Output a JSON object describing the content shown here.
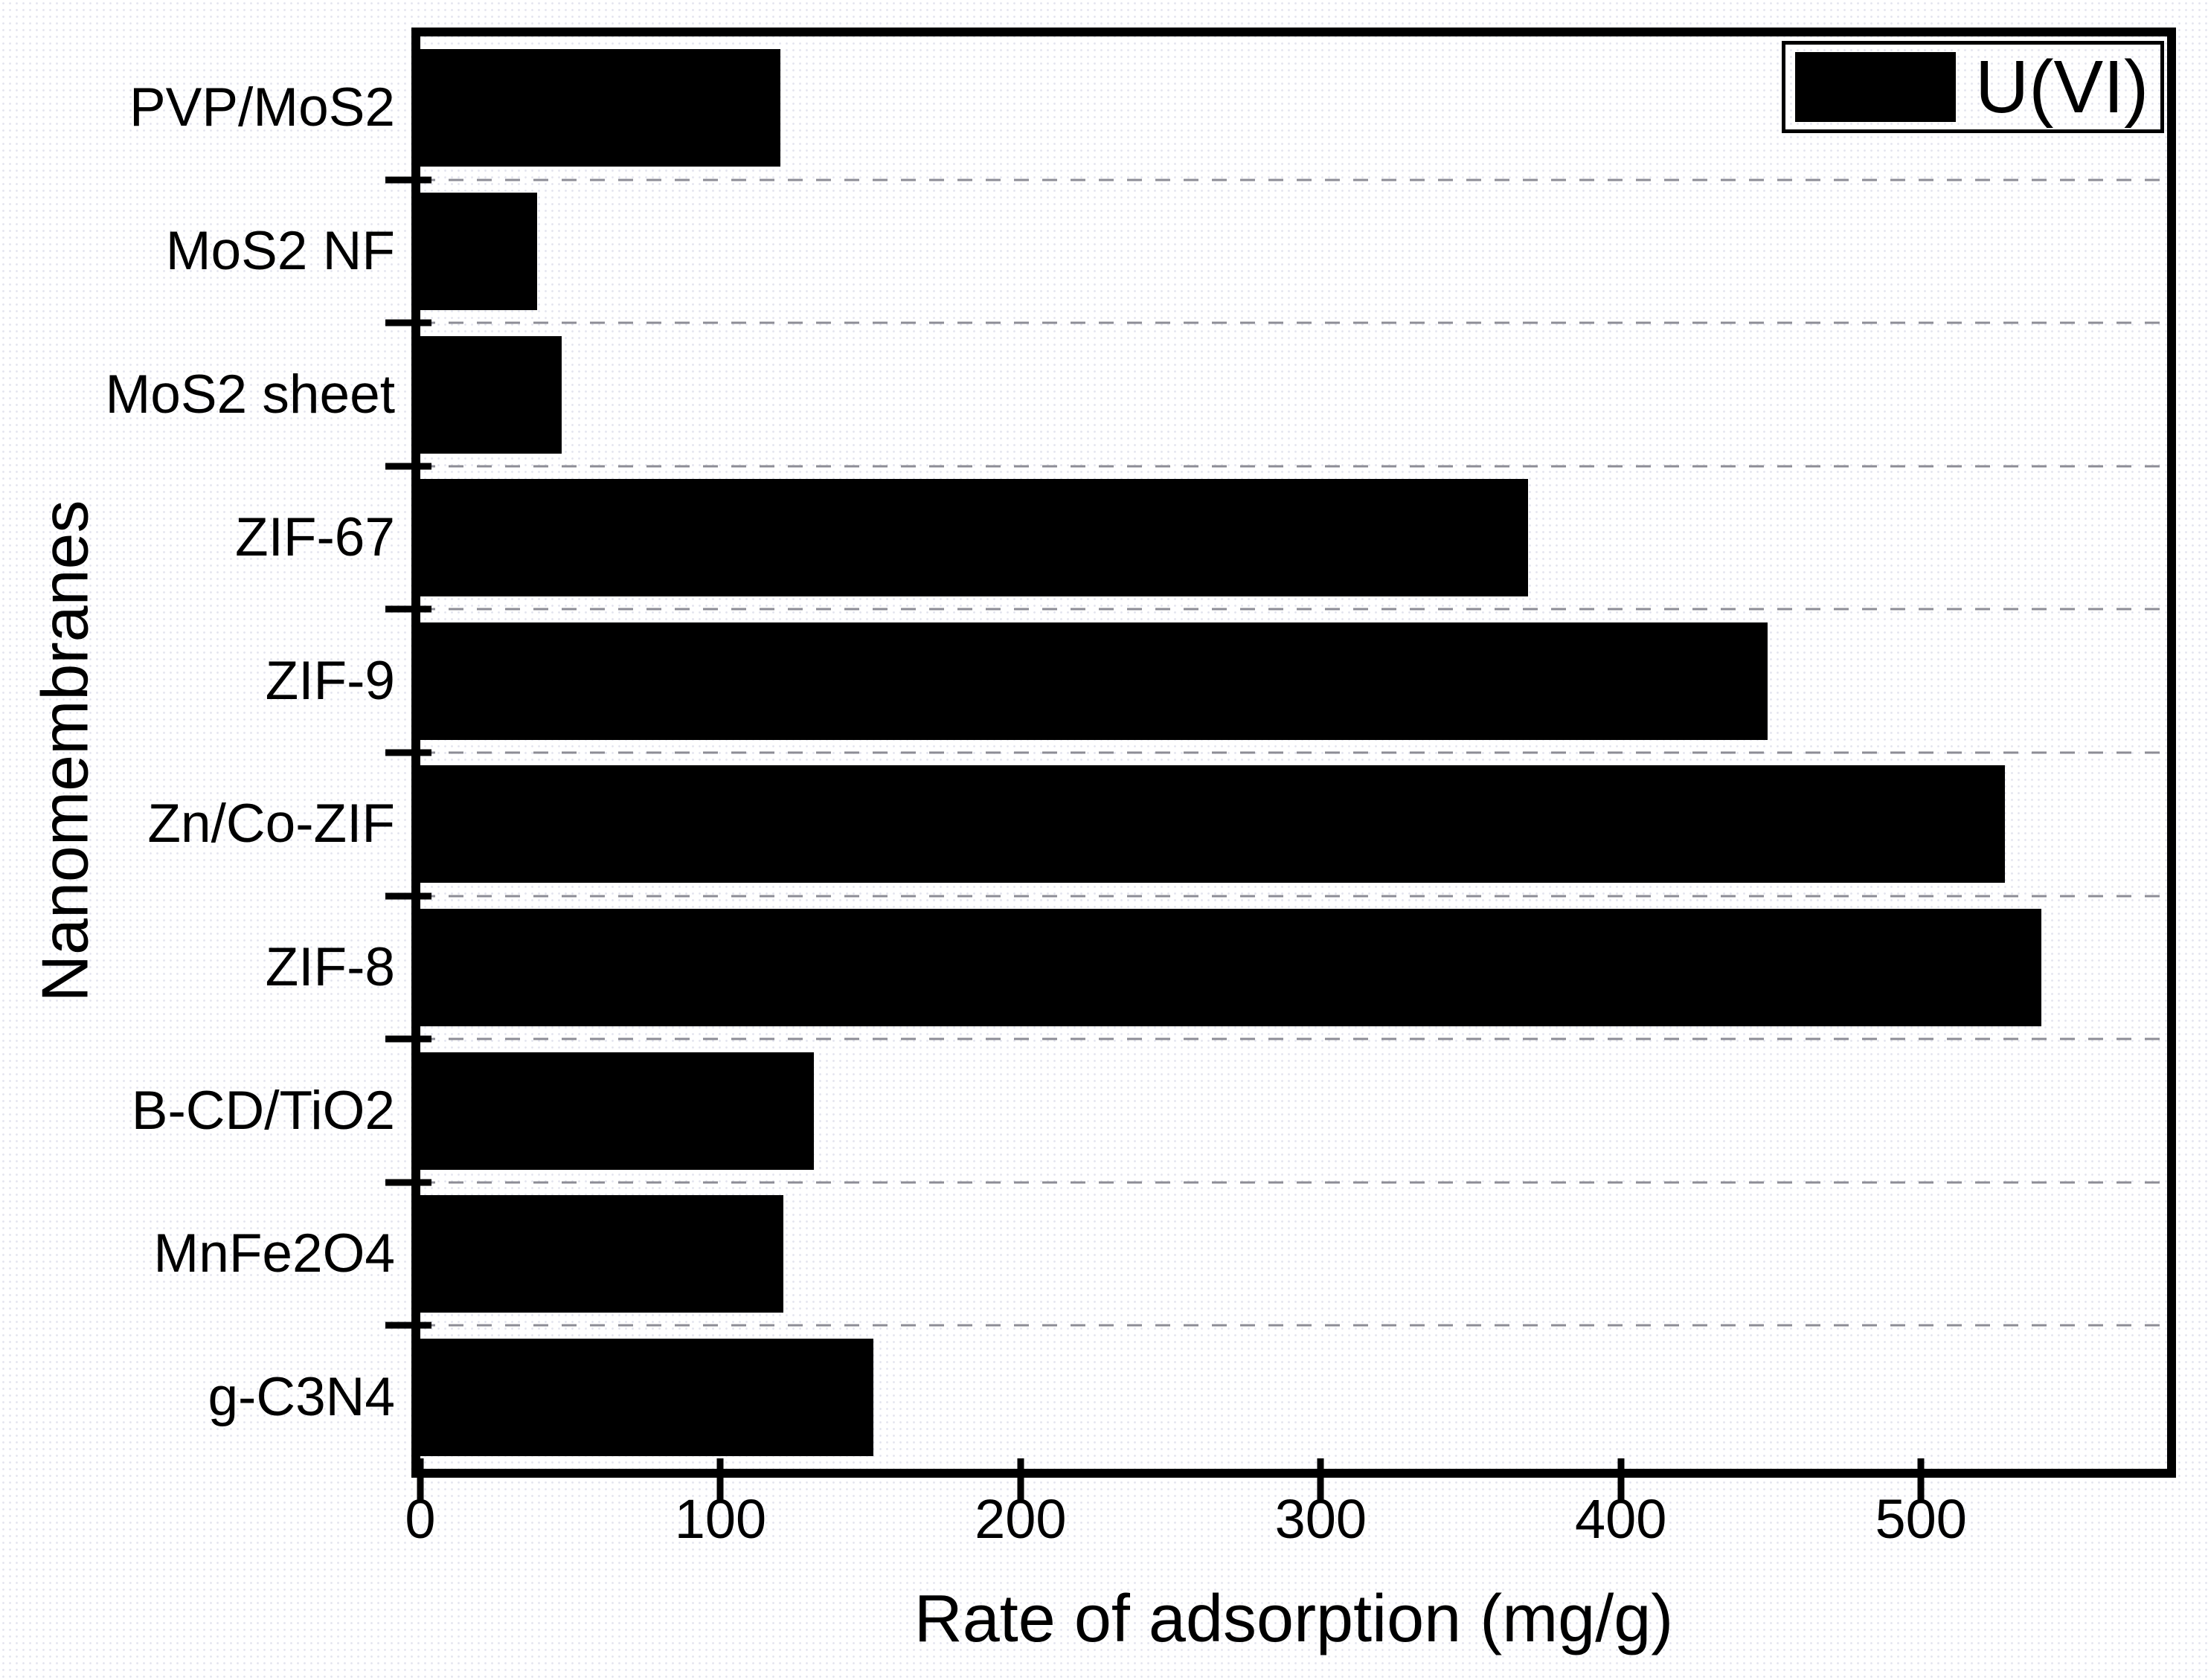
{
  "chart_data": {
    "type": "bar",
    "orientation": "horizontal",
    "title": "",
    "xlabel": "Rate of adsorption (mg/g)",
    "ylabel": "Nanomembranes",
    "categories": [
      "PVP/MoS2",
      "MoS2 NF",
      "MoS2 sheet",
      "ZIF-67",
      "ZIF-9",
      "Zn/Co-ZIF",
      "ZIF-8",
      "B-CD/TiO2",
      "MnFe2O4",
      "g-C3N4"
    ],
    "series": [
      {
        "name": "U(VI)",
        "values": [
          120,
          39,
          47,
          369,
          449,
          528,
          540,
          131,
          121,
          151
        ]
      }
    ],
    "xlim": [
      0,
      582
    ],
    "xticks": [
      0,
      100,
      200,
      300,
      400,
      500
    ],
    "xtick_labels": [
      "0",
      "100",
      "200",
      "300",
      "400",
      "500"
    ],
    "grid": "horizontal dashed lines between category rows",
    "legend_position": "top-right inside plot",
    "bar_color": "#000000",
    "grid_color": "#8d8d96",
    "frame_color": "#000000",
    "background_color": "#ffffff"
  },
  "legend": {
    "label": "U(VI)",
    "swatch_color": "#000000"
  }
}
